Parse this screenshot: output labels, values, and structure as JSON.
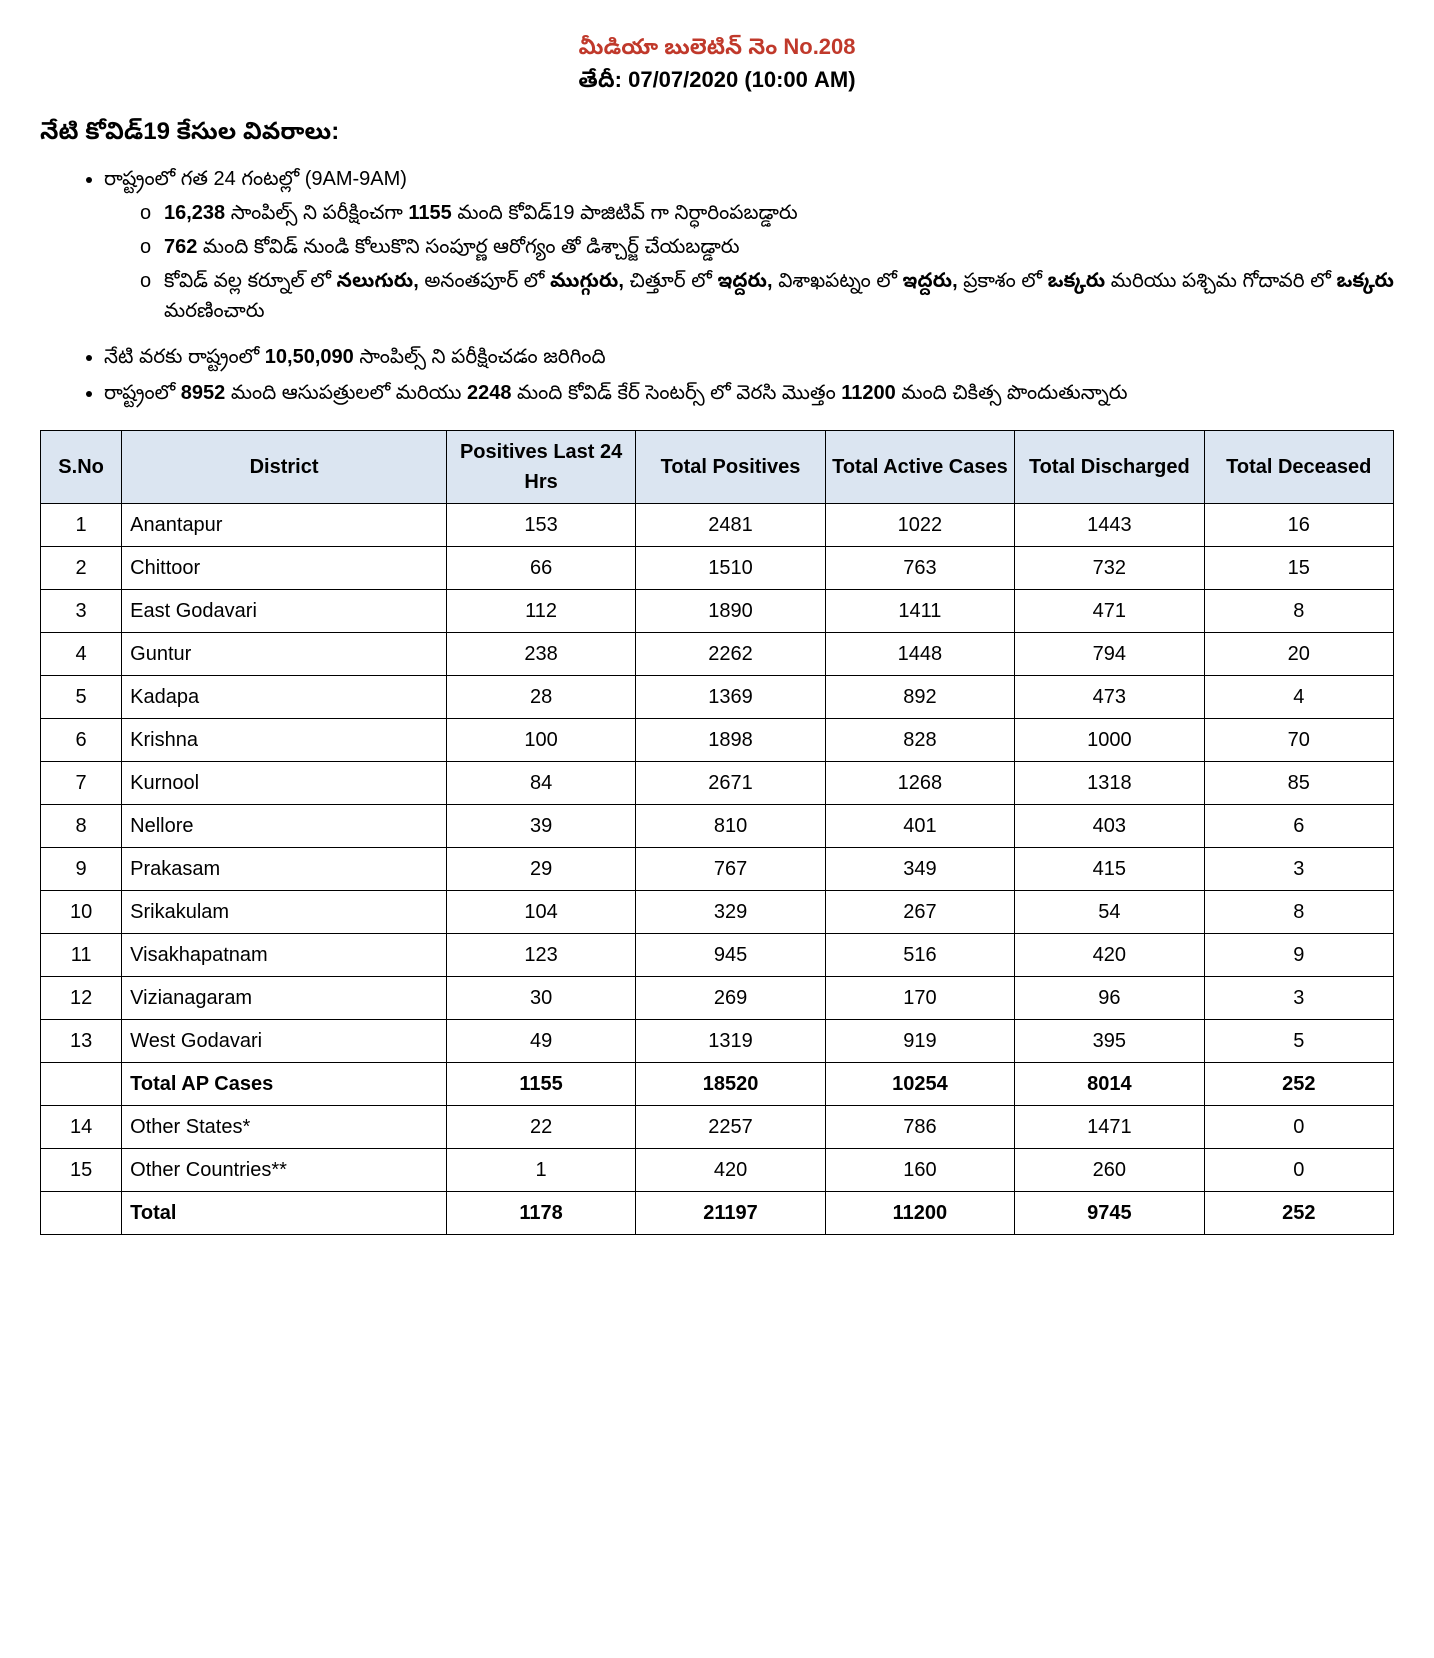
{
  "header": {
    "red_line": "మీడియా  బులెటిన్  నెం No.208",
    "date_line": "తేదీ: 07/07/2020 (10:00 AM)",
    "subtitle": "నేటి కోవిడ్19 కేసుల వివరాలు:"
  },
  "bullets": {
    "b1": "రాష్ట్రంలో గత 24 గంటల్లో  (9AM-9AM)",
    "s1_a": "16,238",
    "s1_b": "  సాంపిల్స్ ని   పరీక్షించగా   ",
    "s1_c": "1155",
    "s1_d": "  మంది   కోవిడ్19   పాజిటివ్   గా నిర్ధారింపబడ్డారు",
    "s2_a": "762",
    "s2_b": " మంది కోవిడ్ నుండి కోలుకొని సంపూర్ణ ఆరోగ్యం తో డిశ్చార్జ్ చేయబడ్డారు",
    "s3_a": "కోవిడ్ వల్ల   కర్నూల్   లో   ",
    "s3_b": "నలుగురు,",
    "s3_c": "   అనంతపూర్   లో   ",
    "s3_d": "ముగ్గురు,",
    "s3_e": "   చిత్తూర్   లో   ",
    "s3_f": "ఇద్దరు,",
    "s3_g": " విశాఖపట్నం   లో   ",
    "s3_h": "ఇద్దరు,",
    "s3_i": "   ప్రకాశం   లో   ",
    "s3_j": "ఒక్కరు",
    "s3_k": "   మరియు   పశ్చిమ   గోదావరి   లో   ",
    "s3_l": "ఒక్కరు",
    "s3_m": " మరణించారు",
    "b2_a": "నేటి వరకు రాష్ట్రంలో ",
    "b2_b": "10,50,090",
    "b2_c": "  సాంపిల్స్ ని పరీక్షించడం జరిగింది",
    "b3_a": "రాష్ట్రంలో ",
    "b3_b": "8952",
    "b3_c": " మంది ఆసుపత్రులలో మరియు ",
    "b3_d": "2248",
    "b3_e": " మంది కోవిడ్ కేర్ సెంటర్స్ లో వెరసి మొత్తం ",
    "b3_f": "11200",
    "b3_g": " మంది చికిత్స పొందుతున్నారు"
  },
  "table": {
    "headers": {
      "sno": "S.No",
      "district": "District",
      "pos24": "Positives Last 24 Hrs",
      "totpos": "Total Positives",
      "active": "Total Active Cases",
      "disch": "Total Discharged",
      "dec": "Total Deceased"
    },
    "header_bg": "#dbe5f1",
    "rows": [
      {
        "n": "1",
        "d": "Anantapur",
        "p": "153",
        "t": "2481",
        "a": "1022",
        "di": "1443",
        "de": "16"
      },
      {
        "n": "2",
        "d": "Chittoor",
        "p": "66",
        "t": "1510",
        "a": "763",
        "di": "732",
        "de": "15"
      },
      {
        "n": "3",
        "d": "East Godavari",
        "p": "112",
        "t": "1890",
        "a": "1411",
        "di": "471",
        "de": "8"
      },
      {
        "n": "4",
        "d": "Guntur",
        "p": "238",
        "t": "2262",
        "a": "1448",
        "di": "794",
        "de": "20"
      },
      {
        "n": "5",
        "d": "Kadapa",
        "p": "28",
        "t": "1369",
        "a": "892",
        "di": "473",
        "de": "4"
      },
      {
        "n": "6",
        "d": "Krishna",
        "p": "100",
        "t": "1898",
        "a": "828",
        "di": "1000",
        "de": "70"
      },
      {
        "n": "7",
        "d": "Kurnool",
        "p": "84",
        "t": "2671",
        "a": "1268",
        "di": "1318",
        "de": "85"
      },
      {
        "n": "8",
        "d": "Nellore",
        "p": "39",
        "t": "810",
        "a": "401",
        "di": "403",
        "de": "6"
      },
      {
        "n": "9",
        "d": "Prakasam",
        "p": "29",
        "t": "767",
        "a": "349",
        "di": "415",
        "de": "3"
      },
      {
        "n": "10",
        "d": "Srikakulam",
        "p": "104",
        "t": "329",
        "a": "267",
        "di": "54",
        "de": "8"
      },
      {
        "n": "11",
        "d": "Visakhapatnam",
        "p": "123",
        "t": "945",
        "a": "516",
        "di": "420",
        "de": "9"
      },
      {
        "n": "12",
        "d": "Vizianagaram",
        "p": "30",
        "t": "269",
        "a": "170",
        "di": "96",
        "de": "3"
      },
      {
        "n": "13",
        "d": "West Godavari",
        "p": "49",
        "t": "1319",
        "a": "919",
        "di": "395",
        "de": "5"
      },
      {
        "n": "",
        "d": "Total AP Cases",
        "p": "1155",
        "t": "18520",
        "a": "10254",
        "di": "8014",
        "de": "252",
        "bold": true
      },
      {
        "n": "14",
        "d": "Other States*",
        "p": "22",
        "t": "2257",
        "a": "786",
        "di": "1471",
        "de": "0"
      },
      {
        "n": "15",
        "d": "Other Countries**",
        "p": "1",
        "t": "420",
        "a": "160",
        "di": "260",
        "de": "0"
      },
      {
        "n": "",
        "d": "Total",
        "p": "1178",
        "t": "21197",
        "a": "11200",
        "di": "9745",
        "de": "252",
        "bold": true
      }
    ]
  }
}
